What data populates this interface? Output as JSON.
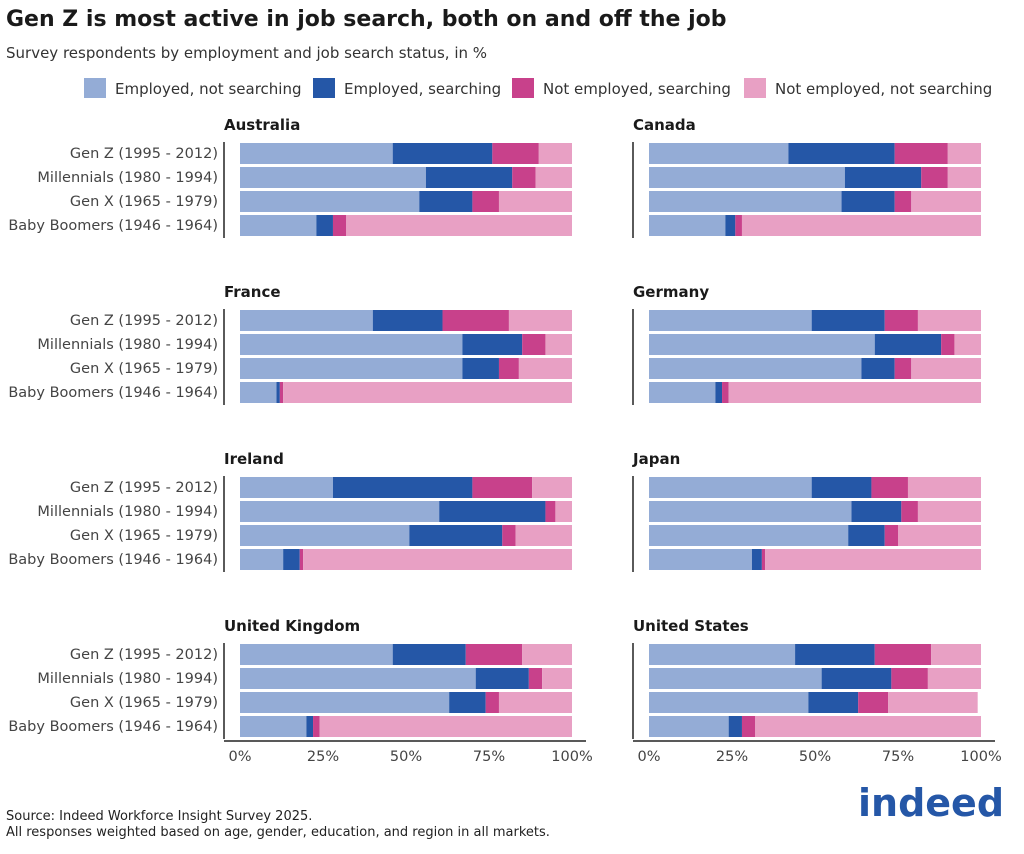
{
  "title": "Gen Z is most active in job search, both on and off the job",
  "subtitle": "Survey respondents by employment and job search status, in %",
  "footer": [
    "Source: Indeed Workforce Insight Survey 2025.",
    "All responses weighted based on age, gender, education, and region in all markets."
  ],
  "logo": "indeed",
  "chart_data": {
    "type": "bar",
    "orientation": "horizontal-stacked",
    "legend_position": "top",
    "grid": false,
    "xlim": [
      0,
      100
    ],
    "x_ticks": [
      "0%",
      "25%",
      "50%",
      "75%",
      "100%"
    ],
    "series_names": [
      "Employed, not searching",
      "Employed, searching",
      "Not employed, searching",
      "Not employed, not searching"
    ],
    "colors": [
      "#94acd6",
      "#2557a7",
      "#c8418b",
      "#e8a0c4"
    ],
    "categories": [
      "Gen Z (1995 - 2012)",
      "Millennials (1980 - 1994)",
      "Gen X (1965 - 1979)",
      "Baby Boomers (1946 - 1964)"
    ],
    "panels": [
      {
        "name": "Australia",
        "values": [
          [
            46,
            30,
            14,
            10
          ],
          [
            56,
            26,
            7,
            11
          ],
          [
            54,
            16,
            8,
            22
          ],
          [
            23,
            5,
            4,
            68
          ]
        ]
      },
      {
        "name": "Canada",
        "values": [
          [
            42,
            32,
            16,
            10
          ],
          [
            59,
            23,
            8,
            10
          ],
          [
            58,
            16,
            5,
            21
          ],
          [
            23,
            3,
            2,
            72
          ]
        ]
      },
      {
        "name": "France",
        "values": [
          [
            40,
            21,
            20,
            19
          ],
          [
            67,
            18,
            7,
            8
          ],
          [
            67,
            11,
            6,
            16
          ],
          [
            11,
            1,
            1,
            87
          ]
        ]
      },
      {
        "name": "Germany",
        "values": [
          [
            49,
            22,
            10,
            19
          ],
          [
            68,
            20,
            4,
            8
          ],
          [
            64,
            10,
            5,
            21
          ],
          [
            20,
            2,
            2,
            76
          ]
        ]
      },
      {
        "name": "Ireland",
        "values": [
          [
            28,
            42,
            18,
            12
          ],
          [
            60,
            32,
            3,
            5
          ],
          [
            51,
            28,
            4,
            17
          ],
          [
            13,
            5,
            1,
            81
          ]
        ]
      },
      {
        "name": "Japan",
        "values": [
          [
            49,
            18,
            11,
            22
          ],
          [
            61,
            15,
            5,
            19
          ],
          [
            60,
            11,
            4,
            25
          ],
          [
            31,
            3,
            1,
            65
          ]
        ]
      },
      {
        "name": "United Kingdom",
        "values": [
          [
            46,
            22,
            17,
            15
          ],
          [
            71,
            16,
            4,
            9
          ],
          [
            63,
            11,
            4,
            22
          ],
          [
            20,
            2,
            2,
            76
          ]
        ]
      },
      {
        "name": "United States",
        "values": [
          [
            44,
            24,
            17,
            15
          ],
          [
            52,
            21,
            11,
            16
          ],
          [
            48,
            15,
            9,
            27
          ],
          [
            24,
            4,
            4,
            68
          ]
        ]
      }
    ]
  }
}
